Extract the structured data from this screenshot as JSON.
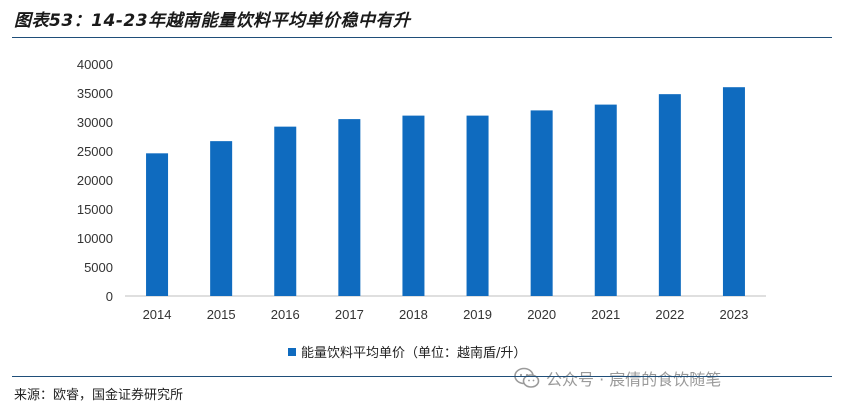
{
  "title": "图表53：14-23年越南能量饮料平均单价稳中有升",
  "source": "来源：欧睿，国金证券研究所",
  "watermark": "公众号 · 宸倩的食饮随笔",
  "colors": {
    "bar": "#0f6bbf",
    "rule": "#1f4e79",
    "axis": "#bfbfbf"
  },
  "chart_data": {
    "type": "bar",
    "categories": [
      "2014",
      "2015",
      "2016",
      "2017",
      "2018",
      "2019",
      "2020",
      "2021",
      "2022",
      "2023"
    ],
    "series": [
      {
        "name": "能量饮料平均单价（单位：越南盾/升）",
        "values": [
          24600,
          26700,
          29200,
          30500,
          31100,
          31100,
          32000,
          33000,
          34800,
          36000
        ]
      }
    ],
    "ylim": [
      0,
      40000
    ],
    "yticks": [
      0,
      5000,
      10000,
      15000,
      20000,
      25000,
      30000,
      35000,
      40000
    ],
    "grid": false,
    "legend": "bottom-center"
  }
}
